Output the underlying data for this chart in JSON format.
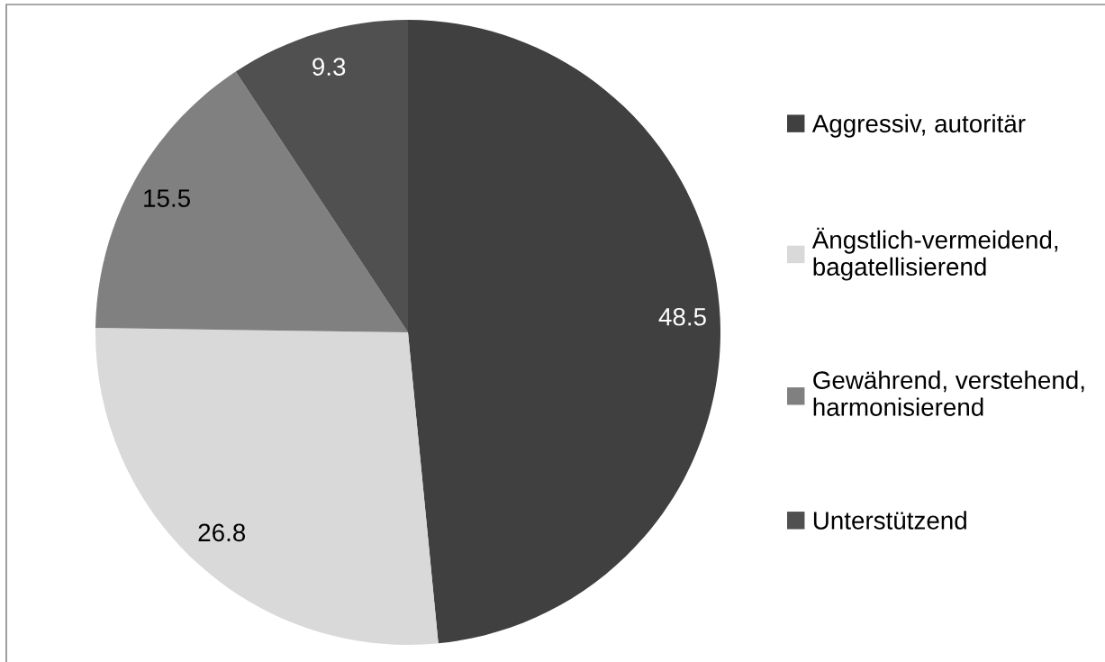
{
  "chart_data": {
    "type": "pie",
    "categories": [
      "Aggressiv, autoritär",
      "Ängstlich-vermeidend, bagatellisierend",
      "Gewährend, verstehend, harmonisierend",
      "Unterstützend"
    ],
    "values": [
      48.5,
      26.8,
      15.5,
      9.3
    ],
    "colors": [
      "#404040",
      "#d9d9d9",
      "#808080",
      "#505050"
    ],
    "data_labels": true,
    "legend": "right"
  }
}
